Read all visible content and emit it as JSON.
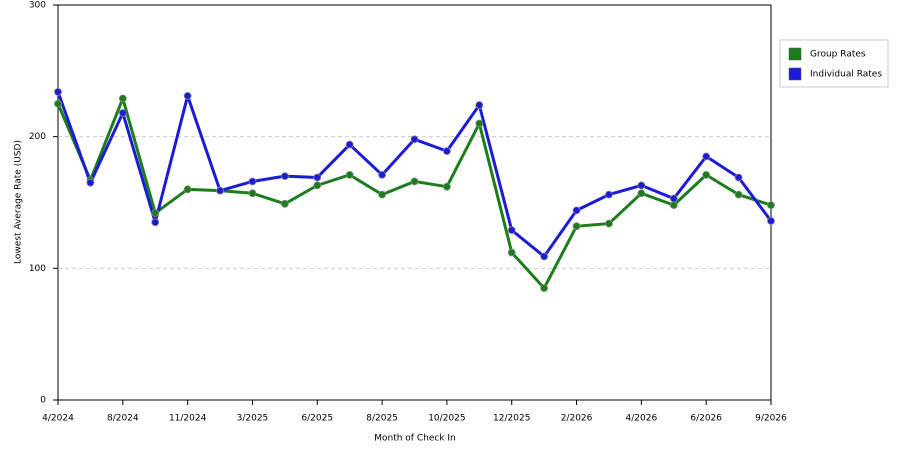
{
  "chart_data": {
    "type": "line",
    "x_label": "Month of Check In",
    "y_label": "Lowest Average Rate (USD)",
    "categories": [
      "4/2024",
      null,
      "8/2024",
      null,
      "11/2024",
      null,
      "3/2025",
      null,
      "6/2025",
      null,
      "8/2025",
      null,
      "10/2025",
      null,
      "12/2025",
      null,
      "2/2026",
      null,
      "4/2026",
      null,
      "6/2026",
      null,
      "9/2026"
    ],
    "series": [
      {
        "name": "Group Rates",
        "color": "#1b7d1b",
        "values": [
          225,
          167,
          229,
          142,
          160,
          159,
          157,
          149,
          163,
          171,
          156,
          166,
          162,
          210,
          112,
          85,
          132,
          134,
          157,
          148,
          171,
          156,
          148
        ]
      },
      {
        "name": "Individual Rates",
        "color": "#1c1cd6",
        "values": [
          234,
          165,
          218,
          135,
          231,
          159,
          166,
          170,
          169,
          194,
          171,
          198,
          189,
          224,
          129,
          109,
          144,
          156,
          163,
          153,
          185,
          169,
          136
        ]
      }
    ],
    "ylim": [
      0,
      300
    ],
    "yticks": [
      0,
      100,
      200,
      300
    ],
    "grid": true,
    "legend": "right"
  }
}
